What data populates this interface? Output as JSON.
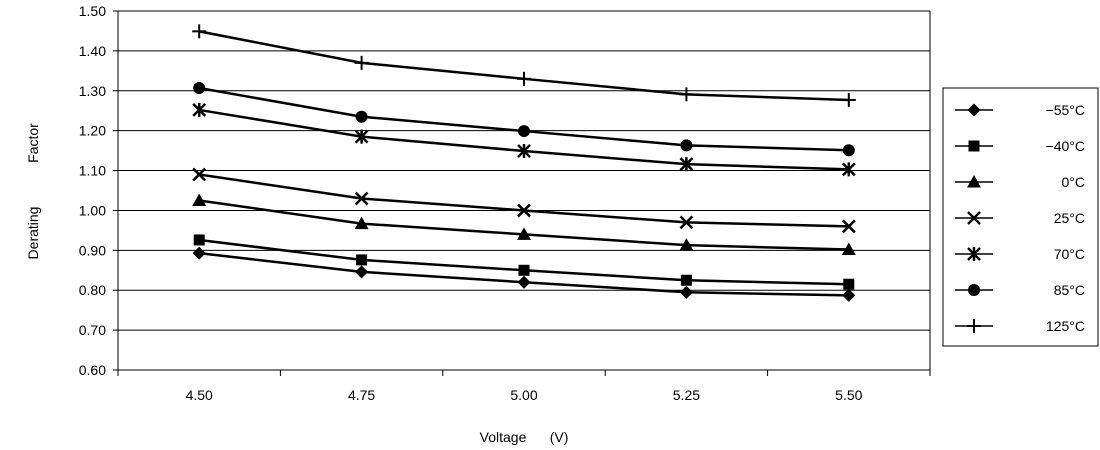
{
  "chart_data": {
    "type": "line",
    "title": "",
    "xlabel": "Voltage      (V)",
    "ylabel_parts": [
      "Derating",
      "Factor"
    ],
    "categories": [
      "4.50",
      "4.75",
      "5.00",
      "5.25",
      "5.50"
    ],
    "x": [
      4.5,
      4.75,
      5.0,
      5.25,
      5.5
    ],
    "ylim": [
      0.6,
      1.5
    ],
    "yticks": [
      "0.60",
      "0.70",
      "0.80",
      "0.90",
      "1.00",
      "1.10",
      "1.20",
      "1.30",
      "1.40",
      "1.50"
    ],
    "grid": true,
    "legend_placement": "right",
    "line_color": "#000000",
    "series": [
      {
        "name": "−55°C",
        "marker": "diamond",
        "values": [
          0.893,
          0.846,
          0.82,
          0.795,
          0.787
        ]
      },
      {
        "name": "−40°C",
        "marker": "square",
        "values": [
          0.926,
          0.876,
          0.85,
          0.825,
          0.815
        ]
      },
      {
        "name": "0°C",
        "marker": "triangle",
        "values": [
          1.025,
          0.967,
          0.94,
          0.913,
          0.902
        ]
      },
      {
        "name": "25°C",
        "marker": "x",
        "values": [
          1.09,
          1.03,
          1.0,
          0.97,
          0.96
        ]
      },
      {
        "name": "70°C",
        "marker": "asterisk",
        "values": [
          1.252,
          1.185,
          1.149,
          1.116,
          1.103
        ]
      },
      {
        "name": "85°C",
        "marker": "circle",
        "values": [
          1.307,
          1.235,
          1.199,
          1.163,
          1.151
        ]
      },
      {
        "name": "125°C",
        "marker": "plus",
        "values": [
          1.449,
          1.37,
          1.33,
          1.291,
          1.277
        ]
      }
    ]
  }
}
